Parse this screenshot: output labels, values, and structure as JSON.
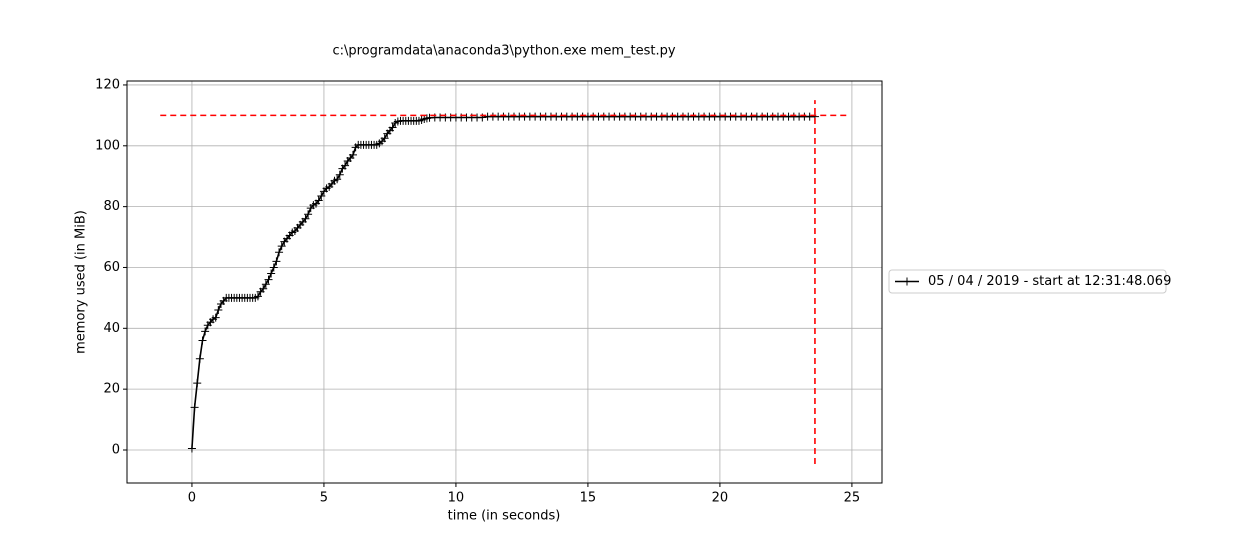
{
  "chart_data": {
    "type": "line",
    "title": "c:\\programdata\\anaconda3\\python.exe mem_test.py",
    "x_label": "time (in seconds)",
    "y_label": "memory used (in MiB)",
    "series": [
      {
        "name": "05 / 04 / 2019 - start at 12:31:48.069",
        "color": "#000000",
        "marker": "+",
        "x": [
          0,
          0.1,
          0.2,
          0.3,
          0.4,
          0.5,
          0.6,
          0.7,
          0.8,
          0.9,
          1,
          1.1,
          1.2,
          1.3,
          1.4,
          1.5,
          1.6,
          1.7,
          1.8,
          1.9,
          2,
          2.1,
          2.2,
          2.3,
          2.4,
          2.5,
          2.6,
          2.7,
          2.8,
          2.9,
          3,
          3.1,
          3.2,
          3.3,
          3.4,
          3.5,
          3.6,
          3.7,
          3.8,
          3.9,
          4,
          4.1,
          4.2,
          4.3,
          4.4,
          4.5,
          4.6,
          4.7,
          4.8,
          4.9,
          5,
          5.1,
          5.2,
          5.3,
          5.4,
          5.5,
          5.6,
          5.7,
          5.8,
          5.9,
          6,
          6.1,
          6.2,
          6.3,
          6.4,
          6.5,
          6.6,
          6.7,
          6.8,
          6.9,
          7,
          7.1,
          7.2,
          7.3,
          7.4,
          7.5,
          7.6,
          7.7,
          7.8,
          7.9,
          8,
          8.1,
          8.2,
          8.3,
          8.4,
          8.5,
          8.6,
          8.7,
          8.8,
          8.9,
          9,
          9.2,
          9.4,
          9.6,
          9.8,
          10,
          10.2,
          10.4,
          10.6,
          10.8,
          11,
          11.2,
          11.4,
          11.6,
          11.8,
          12,
          12.2,
          12.4,
          12.6,
          12.8,
          13,
          13.2,
          13.4,
          13.6,
          13.8,
          14,
          14.2,
          14.4,
          14.6,
          14.8,
          15,
          15.2,
          15.4,
          15.6,
          15.8,
          16,
          16.2,
          16.4,
          16.6,
          16.8,
          17,
          17.2,
          17.4,
          17.6,
          17.8,
          18,
          18.2,
          18.4,
          18.6,
          18.8,
          19,
          19.2,
          19.4,
          19.6,
          19.8,
          20,
          20.2,
          20.4,
          20.6,
          20.8,
          21,
          21.2,
          21.4,
          21.6,
          21.8,
          22,
          22.2,
          22.4,
          22.6,
          22.8,
          23,
          23.2,
          23.4,
          23.6
        ],
        "values": [
          0.5,
          14,
          22,
          30,
          36,
          39,
          41,
          42,
          43,
          43.5,
          46,
          48,
          49,
          50,
          50,
          50,
          50,
          50,
          50,
          50,
          50,
          50,
          50,
          50,
          50,
          50.5,
          52,
          53,
          54.5,
          56,
          58,
          60,
          62,
          65,
          67,
          68.5,
          69.5,
          70.5,
          71.5,
          72,
          73,
          74,
          75,
          76,
          77.5,
          79.5,
          80.5,
          81,
          82,
          83.5,
          85,
          86,
          86.5,
          87.5,
          88.5,
          89,
          90.5,
          92.5,
          93.5,
          95,
          96,
          97,
          99.5,
          100.3,
          100.3,
          100.3,
          100.3,
          100.3,
          100.3,
          100.3,
          100.3,
          100.8,
          101.5,
          102.5,
          104,
          105,
          106,
          107.5,
          108,
          108.2,
          108.2,
          108.2,
          108.2,
          108.2,
          108.2,
          108.2,
          108.2,
          108.5,
          108.8,
          109,
          109.2,
          109.3,
          109.3,
          109.3,
          109.3,
          109.3,
          109.3,
          109.3,
          109.3,
          109.3,
          109.3,
          109.6,
          109.6,
          109.6,
          109.6,
          109.6,
          109.6,
          109.6,
          109.6,
          109.6,
          109.6,
          109.6,
          109.6,
          109.6,
          109.6,
          109.6,
          109.6,
          109.6,
          109.6,
          109.6,
          109.6,
          109.6,
          109.6,
          109.6,
          109.6,
          109.6,
          109.6,
          109.6,
          109.6,
          109.6,
          109.6,
          109.6,
          109.6,
          109.6,
          109.6,
          109.6,
          109.6,
          109.6,
          109.6,
          109.6,
          109.6,
          109.6,
          109.6,
          109.6,
          109.6,
          109.6,
          109.6,
          109.6,
          109.6,
          109.6,
          109.6,
          109.6,
          109.6,
          109.6,
          109.6,
          109.6,
          109.6,
          109.6,
          109.6,
          109.6,
          109.6,
          109.6,
          109.6,
          109.6
        ]
      }
    ],
    "hlines": [
      {
        "y": 110,
        "xmin": -1.2,
        "xmax": 24.85,
        "color": "#ff0000"
      }
    ],
    "vlines": [
      {
        "x": 23.6,
        "ymin": -4.6,
        "ymax": 115,
        "color": "#ff0000"
      }
    ],
    "xlim": [
      -2.46,
      26.14
    ],
    "ylim": [
      -10.85,
      121.3
    ],
    "xticks": [
      0,
      5,
      10,
      15,
      20,
      25
    ],
    "yticks": [
      0,
      20,
      40,
      60,
      80,
      100,
      120
    ],
    "grid": true,
    "legend": "outside right"
  }
}
